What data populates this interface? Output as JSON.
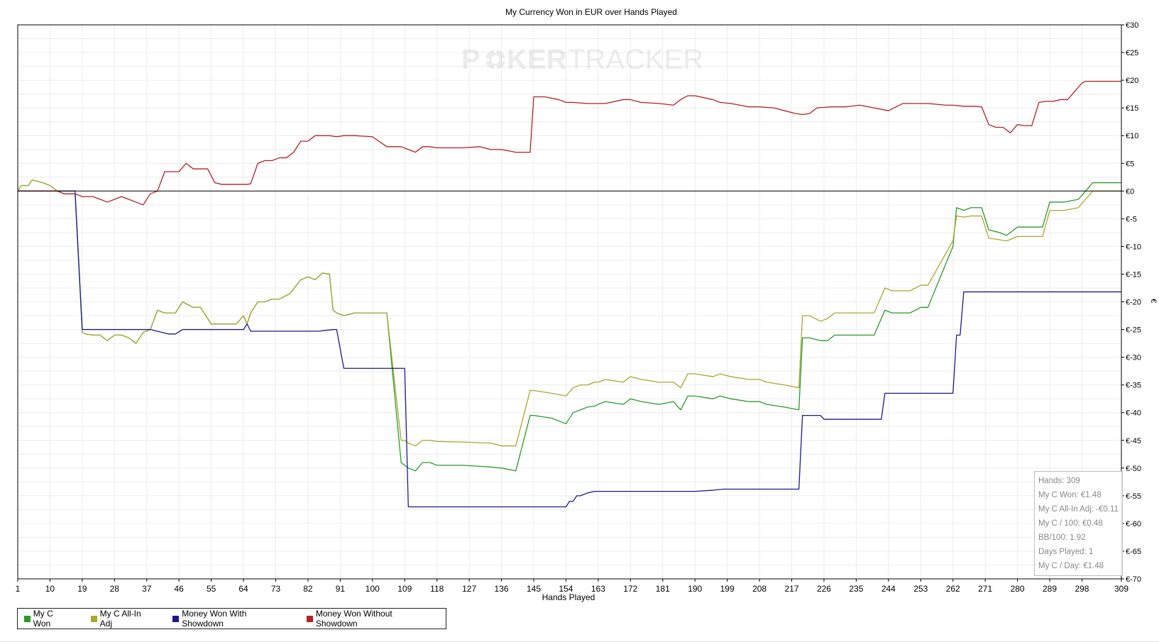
{
  "chart_data": {
    "type": "line",
    "title": "My Currency Won in EUR over Hands Played",
    "xlabel": "Hands Played",
    "ylabel": "€",
    "watermark": {
      "part1": "P",
      "part2": "KER",
      "part3": "TRACKER"
    },
    "xlim": [
      1,
      309
    ],
    "ylim": [
      -70,
      30
    ],
    "grid": true,
    "legend_position": "bottom-left",
    "x_ticks": [
      1,
      10,
      19,
      28,
      37,
      46,
      55,
      64,
      73,
      82,
      91,
      100,
      109,
      118,
      127,
      136,
      145,
      154,
      163,
      172,
      181,
      190,
      199,
      208,
      217,
      226,
      235,
      244,
      253,
      262,
      271,
      280,
      289,
      298,
      309
    ],
    "y_ticks": [
      30,
      25,
      20,
      15,
      10,
      5,
      0,
      -5,
      -10,
      -15,
      -20,
      -25,
      -30,
      -35,
      -40,
      -45,
      -50,
      -55,
      -60,
      -65,
      -70
    ],
    "y_tick_labels": [
      "€30",
      "€25",
      "€20",
      "€15",
      "€10",
      "€5",
      "€0",
      "€-5",
      "€-10",
      "€-15",
      "€-20",
      "€-25",
      "€-30",
      "€-35",
      "€-40",
      "€-45",
      "€-50",
      "€-55",
      "€-60",
      "€-65",
      "€-70"
    ],
    "series": [
      {
        "name": "My C Won",
        "color": "#2a9a2a",
        "x": [
          1,
          2,
          4,
          5,
          8,
          10,
          12,
          14,
          17,
          19,
          20,
          22,
          24,
          26,
          28,
          30,
          32,
          34,
          36,
          38,
          40,
          42,
          45,
          47,
          50,
          52,
          55,
          57,
          60,
          62,
          64,
          65,
          66,
          68,
          70,
          72,
          74,
          77,
          80,
          82,
          84,
          86,
          88,
          89,
          90,
          92,
          95,
          100,
          104,
          108,
          109,
          110,
          112,
          114,
          116,
          118,
          125,
          133,
          136,
          140,
          144,
          145,
          150,
          154,
          156,
          158,
          160,
          162,
          163,
          165,
          170,
          172,
          175,
          180,
          184,
          186,
          188,
          190,
          195,
          197,
          200,
          205,
          208,
          210,
          215,
          219,
          220,
          222,
          225,
          227,
          229,
          232,
          235,
          240,
          243,
          245,
          250,
          253,
          255,
          262,
          263,
          265,
          267,
          270,
          272,
          275,
          277,
          280,
          282,
          287,
          289,
          293,
          297,
          299,
          301,
          309
        ],
        "y": [
          0,
          1,
          1,
          2,
          1.5,
          1,
          0,
          -0.5,
          -0.5,
          -25.5,
          -25.8,
          -26,
          -26,
          -27,
          -26,
          -26,
          -26.5,
          -27.5,
          -25.5,
          -25,
          -21.5,
          -22,
          -22,
          -20,
          -21,
          -21,
          -24,
          -24,
          -24,
          -24,
          -22.5,
          -24,
          -22,
          -20,
          -20,
          -19.5,
          -19.5,
          -18.5,
          -16,
          -15.5,
          -16,
          -14.8,
          -15,
          -21.5,
          -22,
          -22.5,
          -22,
          -22,
          -22,
          -49,
          -49.5,
          -50,
          -50.5,
          -49,
          -49,
          -49.5,
          -49.5,
          -49.8,
          -50,
          -50.5,
          -40.5,
          -40.5,
          -41,
          -42,
          -40,
          -39.5,
          -39,
          -38.8,
          -38.5,
          -38,
          -38.5,
          -37.5,
          -38,
          -38.5,
          -38,
          -39.5,
          -37,
          -37,
          -37.5,
          -37,
          -37.5,
          -38,
          -38,
          -38.5,
          -39,
          -39.5,
          -26.5,
          -26.5,
          -27,
          -27,
          -26,
          -26,
          -26,
          -26,
          -21.5,
          -22,
          -22,
          -21,
          -21,
          -10,
          -3,
          -3.5,
          -3,
          -3,
          -7,
          -7.5,
          -8,
          -6.5,
          -6.5,
          -6.5,
          -2,
          -2,
          -1.5,
          0,
          1.5,
          1.5
        ]
      },
      {
        "name": "My C All-In Adj",
        "color": "#a8a830",
        "x": [
          1,
          2,
          4,
          5,
          8,
          10,
          12,
          14,
          17,
          19,
          20,
          22,
          24,
          26,
          28,
          30,
          32,
          34,
          36,
          38,
          40,
          42,
          45,
          47,
          50,
          52,
          55,
          57,
          60,
          62,
          64,
          65,
          66,
          68,
          70,
          72,
          74,
          77,
          80,
          82,
          84,
          86,
          88,
          89,
          90,
          92,
          95,
          100,
          104,
          108,
          109,
          110,
          112,
          114,
          116,
          118,
          125,
          133,
          136,
          140,
          144,
          145,
          150,
          154,
          156,
          158,
          160,
          162,
          163,
          165,
          170,
          172,
          175,
          180,
          184,
          186,
          188,
          190,
          195,
          197,
          200,
          205,
          208,
          210,
          215,
          219,
          220,
          222,
          225,
          227,
          229,
          232,
          235,
          240,
          243,
          245,
          250,
          253,
          255,
          262,
          263,
          265,
          267,
          270,
          272,
          275,
          277,
          280,
          282,
          287,
          289,
          293,
          297,
          299,
          301,
          309
        ],
        "y": [
          0,
          1,
          1,
          2,
          1.5,
          1,
          0,
          -0.5,
          -0.5,
          -25.5,
          -25.8,
          -26,
          -26,
          -27,
          -26,
          -26,
          -26.5,
          -27.5,
          -25.5,
          -25,
          -21.5,
          -22,
          -22,
          -20,
          -21,
          -21,
          -24,
          -24,
          -24,
          -24,
          -22.5,
          -24,
          -22,
          -20,
          -20,
          -19.5,
          -19.5,
          -18.5,
          -16,
          -15.5,
          -16,
          -14.8,
          -15,
          -21.5,
          -22,
          -22.5,
          -22,
          -22,
          -22,
          -45,
          -45,
          -45.5,
          -46,
          -45,
          -45,
          -45.2,
          -45.3,
          -45.5,
          -46,
          -46,
          -36,
          -36,
          -36.5,
          -37,
          -35.5,
          -35,
          -35,
          -34.5,
          -34.5,
          -34,
          -34.5,
          -33.5,
          -34,
          -34.5,
          -34.5,
          -35.5,
          -33,
          -33,
          -33.5,
          -33,
          -33.5,
          -34,
          -34,
          -34.5,
          -35,
          -35.5,
          -22.5,
          -22.5,
          -23.5,
          -23,
          -22,
          -22,
          -22,
          -22,
          -17.5,
          -18,
          -18,
          -17,
          -17,
          -9,
          -4.5,
          -4.7,
          -4.5,
          -4.5,
          -8.5,
          -8.8,
          -9,
          -8.2,
          -8.2,
          -8.2,
          -3.5,
          -3.5,
          -3,
          -1.5,
          0,
          0
        ]
      },
      {
        "name": "Money Won With Showdown",
        "color": "#1a1a8c",
        "x": [
          1,
          14,
          17,
          19,
          30,
          38,
          43,
          45,
          47,
          64,
          65,
          66,
          85,
          89,
          90,
          92,
          100,
          108,
          109,
          110,
          112,
          130,
          154,
          155,
          156,
          157,
          158,
          160,
          162,
          170,
          190,
          195,
          198,
          219,
          220,
          221,
          225,
          226,
          240,
          242,
          243,
          244,
          255,
          262,
          263,
          264,
          265,
          270,
          309
        ],
        "y": [
          0,
          0,
          0,
          -25,
          -25,
          -25,
          -25.8,
          -25.8,
          -25,
          -25,
          -24,
          -25.3,
          -25.3,
          -25,
          -25,
          -32,
          -32,
          -32,
          -32,
          -57,
          -57,
          -57,
          -57,
          -56,
          -56,
          -55,
          -55,
          -54.5,
          -54.2,
          -54.2,
          -54.2,
          -54,
          -53.8,
          -53.8,
          -40.5,
          -40.5,
          -40.5,
          -41.2,
          -41.2,
          -41.2,
          -36.5,
          -36.5,
          -36.5,
          -36.5,
          -26,
          -26,
          -18.2,
          -18.2,
          -18.2
        ]
      },
      {
        "name": "Money Won Without Showdown",
        "color": "#b22222",
        "x": [
          1,
          12,
          14,
          17,
          19,
          22,
          24,
          26,
          28,
          30,
          32,
          34,
          36,
          38,
          40,
          42,
          44,
          46,
          48,
          50,
          52,
          54,
          56,
          58,
          60,
          62,
          64,
          65,
          66,
          68,
          70,
          72,
          74,
          76,
          78,
          80,
          82,
          84,
          86,
          88,
          90,
          92,
          95,
          100,
          104,
          108,
          110,
          112,
          114,
          116,
          118,
          120,
          125,
          130,
          133,
          136,
          140,
          144,
          145,
          148,
          152,
          154,
          156,
          160,
          165,
          170,
          172,
          175,
          180,
          184,
          186,
          188,
          190,
          195,
          197,
          200,
          205,
          208,
          212,
          215,
          218,
          220,
          222,
          224,
          228,
          232,
          236,
          240,
          244,
          248,
          252,
          255,
          260,
          262,
          265,
          268,
          270,
          272,
          274,
          276,
          278,
          280,
          282,
          284,
          286,
          288,
          290,
          292,
          294,
          296,
          298,
          299,
          301,
          309
        ],
        "y": [
          0,
          0,
          -0.5,
          -0.5,
          -1,
          -1,
          -1.5,
          -2,
          -1.5,
          -1,
          -1.5,
          -2,
          -2.5,
          -0.5,
          0,
          3.5,
          3.5,
          3.5,
          5,
          4,
          4,
          4,
          1.5,
          1.2,
          1.2,
          1.2,
          1.2,
          1.2,
          1.3,
          5,
          5.5,
          5.5,
          6,
          6,
          7,
          9,
          9,
          10,
          10,
          10,
          9.8,
          10,
          10,
          9.8,
          8,
          8,
          7.5,
          7,
          8,
          8,
          7.8,
          7.8,
          7.8,
          8,
          7.5,
          7.5,
          7,
          7,
          17,
          17,
          16.5,
          16,
          16,
          15.8,
          15.8,
          16.5,
          16.5,
          16,
          15.8,
          15.5,
          16.5,
          17.2,
          17.2,
          16.5,
          16,
          15.8,
          15.2,
          15.2,
          15,
          14.5,
          14,
          13.8,
          14,
          15,
          15.2,
          15.2,
          15.5,
          15,
          14.5,
          15.8,
          15.8,
          15.8,
          15.5,
          15.5,
          15.3,
          15.3,
          15.2,
          12,
          11.5,
          11.5,
          10.5,
          12,
          11.8,
          11.8,
          16,
          16.2,
          16.2,
          16.5,
          16.5,
          18,
          19.5,
          19.8,
          19.8,
          19.8
        ]
      }
    ]
  },
  "stats": {
    "hands": "Hands: 309",
    "won": "My C Won: €1.48",
    "allin": "My C All-In Adj: -€0.11",
    "per100": "My C / 100: €0.48",
    "bb100": "BB/100: 1.92",
    "days": "Days Played: 1",
    "perday": "My C / Day: €1.48"
  }
}
